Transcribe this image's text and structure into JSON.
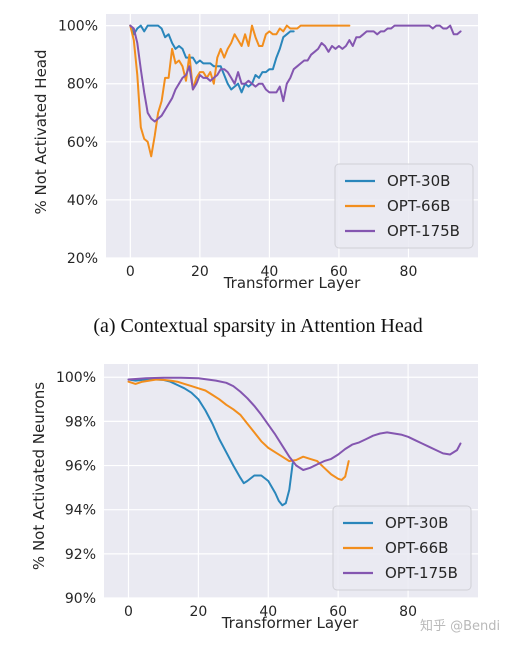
{
  "caption_a": "(a) Contextual sparsity in Attention Head",
  "watermark": "知乎 @Bendi",
  "colors": {
    "OPT-30B": "#2a86bb",
    "OPT-66B": "#f28e1d",
    "OPT-175B": "#8456b0",
    "panel_bg": "#eaeaf2",
    "grid": "#ffffff"
  },
  "chart_data": [
    {
      "type": "line",
      "xlabel": "Transformer Layer",
      "ylabel": "% Not Activated Head",
      "xlim": [
        -7,
        100
      ],
      "ylim": [
        20,
        104
      ],
      "xticks": [
        0,
        20,
        40,
        60,
        80
      ],
      "yticks": [
        20,
        40,
        60,
        80,
        100
      ],
      "ytick_labels": [
        "20%",
        "40%",
        "60%",
        "80%",
        "100%"
      ],
      "grid": true,
      "legend_position": "bottom-right",
      "series": [
        {
          "name": "OPT-30B",
          "x": [
            0,
            1,
            2,
            3,
            4,
            5,
            6,
            7,
            8,
            9,
            10,
            11,
            12,
            13,
            14,
            15,
            16,
            17,
            18,
            19,
            20,
            21,
            22,
            23,
            24,
            25,
            26,
            27,
            28,
            29,
            30,
            31,
            32,
            33,
            34,
            35,
            36,
            37,
            38,
            39,
            40,
            41,
            42,
            43,
            44,
            45,
            46,
            47
          ],
          "y": [
            100,
            97,
            99,
            100,
            98,
            100,
            100,
            100,
            100,
            99,
            96,
            97,
            94,
            92,
            93,
            92,
            89,
            89,
            89,
            87,
            88,
            87,
            87,
            87,
            86,
            86,
            86,
            83,
            80,
            78,
            79,
            80,
            77,
            80,
            79,
            80,
            83,
            82,
            84,
            84,
            85,
            85,
            89,
            92,
            96,
            97,
            98,
            98
          ]
        },
        {
          "name": "OPT-66B",
          "x": [
            0,
            1,
            2,
            3,
            4,
            5,
            6,
            7,
            8,
            9,
            10,
            11,
            12,
            13,
            14,
            15,
            16,
            17,
            18,
            19,
            20,
            21,
            22,
            23,
            24,
            25,
            26,
            27,
            28,
            29,
            30,
            31,
            32,
            33,
            34,
            35,
            36,
            37,
            38,
            39,
            40,
            41,
            42,
            43,
            44,
            45,
            46,
            47,
            48,
            49,
            50,
            51,
            52,
            53,
            54,
            55,
            56,
            57,
            58,
            59,
            60,
            61,
            62,
            63
          ],
          "y": [
            100,
            95,
            83,
            65,
            61,
            60,
            55,
            62,
            70,
            74,
            82,
            82,
            92,
            87,
            88,
            86,
            81,
            90,
            78,
            82,
            84,
            84,
            82,
            84,
            80,
            89,
            92,
            89,
            92,
            94,
            97,
            95,
            93,
            97,
            93,
            100,
            96,
            93,
            93,
            97,
            98,
            97,
            97,
            99,
            98,
            100,
            99,
            99,
            99,
            100,
            100,
            100,
            100,
            100,
            100,
            100,
            100,
            100,
            100,
            100,
            100,
            100,
            100,
            100
          ]
        },
        {
          "name": "OPT-175B",
          "x": [
            0,
            1,
            2,
            3,
            4,
            5,
            6,
            7,
            8,
            9,
            10,
            11,
            12,
            13,
            14,
            15,
            16,
            17,
            18,
            19,
            20,
            21,
            22,
            23,
            24,
            25,
            26,
            27,
            28,
            29,
            30,
            31,
            32,
            33,
            34,
            35,
            36,
            37,
            38,
            39,
            40,
            41,
            42,
            43,
            44,
            45,
            46,
            47,
            48,
            49,
            50,
            51,
            52,
            53,
            54,
            55,
            56,
            57,
            58,
            59,
            60,
            61,
            62,
            63,
            64,
            65,
            66,
            67,
            68,
            69,
            70,
            71,
            72,
            73,
            74,
            75,
            76,
            77,
            78,
            79,
            80,
            81,
            82,
            83,
            84,
            85,
            86,
            87,
            88,
            89,
            90,
            91,
            92,
            93,
            94,
            95
          ],
          "y": [
            100,
            99,
            94,
            85,
            77,
            70,
            68,
            67,
            68,
            69,
            71,
            73,
            75,
            78,
            80,
            82,
            83,
            86,
            78,
            80,
            83,
            82,
            82,
            81,
            82,
            83,
            85,
            85,
            84,
            82,
            80,
            84,
            80,
            80,
            81,
            80,
            79,
            80,
            80,
            78,
            77,
            77,
            77,
            79,
            74,
            80,
            82,
            85,
            86,
            87,
            88,
            88,
            90,
            91,
            92,
            94,
            93,
            91,
            93,
            92,
            93,
            92,
            93,
            95,
            93,
            96,
            96,
            97,
            98,
            98,
            98,
            97,
            98,
            98,
            99,
            99,
            100,
            100,
            100,
            100,
            100,
            100,
            100,
            100,
            100,
            100,
            100,
            99,
            100,
            100,
            99,
            99,
            100,
            97,
            97,
            98
          ]
        }
      ]
    },
    {
      "type": "line",
      "xlabel": "Transformer Layer",
      "ylabel": "% Not Activated Neurons",
      "xlim": [
        -7,
        100
      ],
      "ylim": [
        90,
        100.6
      ],
      "xticks": [
        0,
        20,
        40,
        60,
        80
      ],
      "yticks": [
        90,
        92,
        94,
        96,
        98,
        100
      ],
      "ytick_labels": [
        "90%",
        "92%",
        "94%",
        "96%",
        "98%",
        "100%"
      ],
      "grid": true,
      "legend_position": "bottom-right",
      "series": [
        {
          "name": "OPT-30B",
          "x": [
            0,
            2,
            4,
            6,
            8,
            10,
            12,
            14,
            16,
            18,
            20,
            22,
            24,
            26,
            28,
            30,
            32,
            33,
            34,
            36,
            38,
            40,
            42,
            43,
            44,
            45,
            46,
            47
          ],
          "y": [
            99.9,
            99.85,
            99.88,
            99.9,
            99.9,
            99.88,
            99.8,
            99.65,
            99.5,
            99.3,
            99.0,
            98.5,
            97.9,
            97.2,
            96.6,
            96.0,
            95.45,
            95.2,
            95.3,
            95.55,
            95.55,
            95.3,
            94.75,
            94.4,
            94.2,
            94.3,
            94.9,
            96.1
          ]
        },
        {
          "name": "OPT-66B",
          "x": [
            0,
            2,
            4,
            6,
            8,
            10,
            12,
            14,
            16,
            18,
            20,
            22,
            24,
            26,
            28,
            30,
            32,
            34,
            36,
            38,
            40,
            42,
            44,
            46,
            48,
            50,
            52,
            54,
            56,
            58,
            60,
            61,
            62,
            63
          ],
          "y": [
            99.8,
            99.7,
            99.8,
            99.85,
            99.9,
            99.88,
            99.85,
            99.8,
            99.7,
            99.6,
            99.5,
            99.4,
            99.2,
            99.0,
            98.75,
            98.55,
            98.3,
            97.9,
            97.5,
            97.1,
            96.8,
            96.6,
            96.4,
            96.2,
            96.25,
            96.4,
            96.3,
            96.2,
            95.9,
            95.6,
            95.4,
            95.35,
            95.5,
            96.2
          ]
        },
        {
          "name": "OPT-175B",
          "x": [
            0,
            5,
            10,
            15,
            20,
            25,
            28,
            30,
            32,
            34,
            36,
            38,
            40,
            42,
            44,
            46,
            48,
            50,
            52,
            54,
            56,
            58,
            60,
            62,
            64,
            66,
            68,
            70,
            72,
            74,
            76,
            78,
            80,
            82,
            84,
            86,
            88,
            90,
            92,
            94,
            95
          ],
          "y": [
            99.9,
            99.95,
            99.98,
            99.98,
            99.95,
            99.85,
            99.75,
            99.6,
            99.35,
            99.05,
            98.7,
            98.3,
            97.85,
            97.4,
            96.9,
            96.4,
            96.0,
            95.8,
            95.9,
            96.05,
            96.2,
            96.3,
            96.5,
            96.75,
            96.95,
            97.05,
            97.2,
            97.35,
            97.45,
            97.5,
            97.45,
            97.4,
            97.3,
            97.15,
            97.0,
            96.85,
            96.7,
            96.55,
            96.5,
            96.7,
            97.0
          ]
        }
      ]
    }
  ]
}
